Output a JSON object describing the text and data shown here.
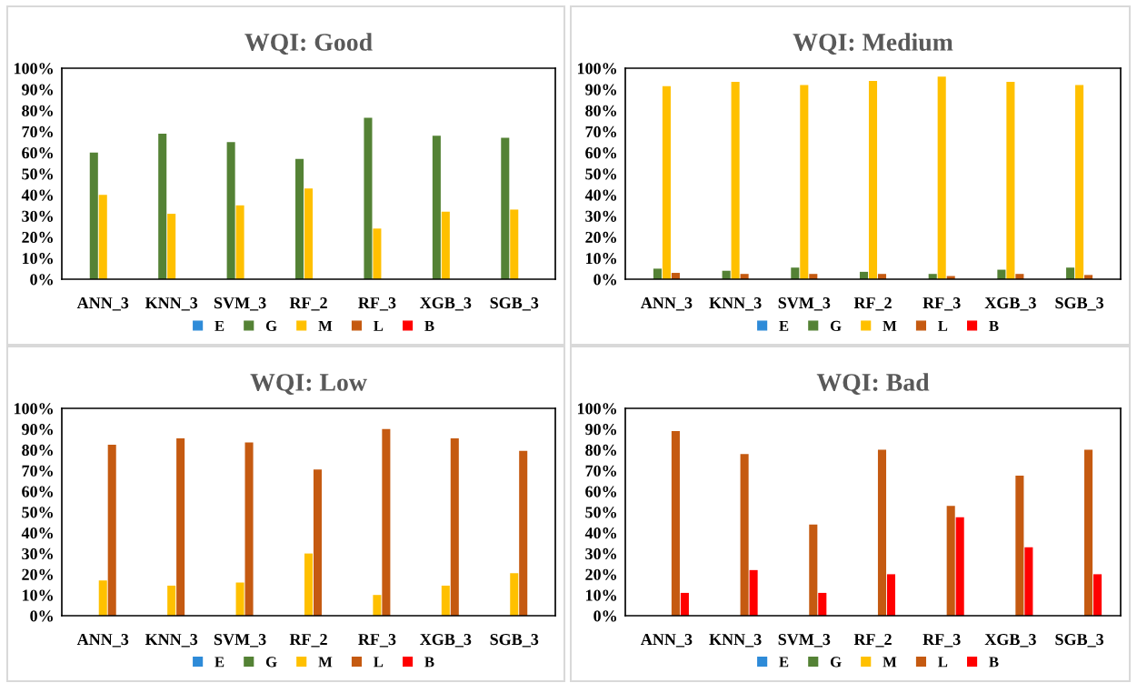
{
  "chart_data": [
    {
      "type": "bar",
      "title": "WQI: Good",
      "categories": [
        "ANN_3",
        "KNN_3",
        "SVM_3",
        "RF_2",
        "RF_3",
        "XGB_3",
        "SGB_3"
      ],
      "series": [
        {
          "name": "E",
          "color": "#2e8bd8",
          "values": [
            0,
            0,
            0,
            0,
            0,
            0,
            0
          ]
        },
        {
          "name": "G",
          "color": "#548235",
          "values": [
            60,
            69,
            65,
            57,
            76.5,
            68,
            67
          ]
        },
        {
          "name": "M",
          "color": "#ffc000",
          "values": [
            40,
            31,
            35,
            43,
            24,
            32,
            33
          ]
        },
        {
          "name": "L",
          "color": "#c55a11",
          "values": [
            0,
            0,
            0,
            0,
            0,
            0,
            0
          ]
        },
        {
          "name": "B",
          "color": "#ff0000",
          "values": [
            0,
            0,
            0,
            0,
            0,
            0,
            0
          ]
        }
      ],
      "ylim": [
        0,
        100
      ],
      "yticks": [
        {
          "value": 0,
          "label": "0%"
        },
        {
          "value": 10,
          "label": "10%"
        },
        {
          "value": 20,
          "label": "20%"
        },
        {
          "value": 30,
          "label": "30%"
        },
        {
          "value": 40,
          "label": "40%"
        },
        {
          "value": 50,
          "label": "50%"
        },
        {
          "value": 60,
          "label": "60%"
        },
        {
          "value": 70,
          "label": "70%"
        },
        {
          "value": 80,
          "label": "80%"
        },
        {
          "value": 90,
          "label": "90%"
        },
        {
          "value": 100,
          "label": "100%"
        }
      ],
      "grid": false,
      "legend": "bottom"
    },
    {
      "type": "bar",
      "title": "WQI: Medium",
      "categories": [
        "ANN_3",
        "KNN_3",
        "SVM_3",
        "RF_2",
        "RF_3",
        "XGB_3",
        "SGB_3"
      ],
      "series": [
        {
          "name": "E",
          "color": "#2e8bd8",
          "values": [
            0,
            0,
            0,
            0,
            0,
            0,
            0
          ]
        },
        {
          "name": "G",
          "color": "#548235",
          "values": [
            5,
            4,
            5.5,
            3.5,
            2.5,
            4.5,
            5.5
          ]
        },
        {
          "name": "M",
          "color": "#ffc000",
          "values": [
            91.5,
            93.5,
            92,
            94,
            96,
            93.5,
            92
          ]
        },
        {
          "name": "L",
          "color": "#c55a11",
          "values": [
            3,
            2.5,
            2.5,
            2.5,
            1.5,
            2.5,
            2
          ]
        },
        {
          "name": "B",
          "color": "#ff0000",
          "values": [
            0,
            0,
            0,
            0,
            0,
            0,
            0
          ]
        }
      ],
      "ylim": [
        0,
        100
      ],
      "yticks": [
        {
          "value": 0,
          "label": "0%"
        },
        {
          "value": 10,
          "label": "10%"
        },
        {
          "value": 20,
          "label": "20%"
        },
        {
          "value": 30,
          "label": "30%"
        },
        {
          "value": 40,
          "label": "40%"
        },
        {
          "value": 50,
          "label": "50%"
        },
        {
          "value": 60,
          "label": "60%"
        },
        {
          "value": 70,
          "label": "70%"
        },
        {
          "value": 80,
          "label": "80%"
        },
        {
          "value": 90,
          "label": "90%"
        },
        {
          "value": 100,
          "label": "100%"
        }
      ],
      "grid": false,
      "legend": "bottom"
    },
    {
      "type": "bar",
      "title": "WQI: Low",
      "categories": [
        "ANN_3",
        "KNN_3",
        "SVM_3",
        "RF_2",
        "RF_3",
        "XGB_3",
        "SGB_3"
      ],
      "series": [
        {
          "name": "E",
          "color": "#2e8bd8",
          "values": [
            0,
            0,
            0,
            0,
            0,
            0,
            0
          ]
        },
        {
          "name": "G",
          "color": "#548235",
          "values": [
            0,
            0,
            0,
            0,
            0,
            0,
            0
          ]
        },
        {
          "name": "M",
          "color": "#ffc000",
          "values": [
            17,
            14.5,
            16,
            30,
            10,
            14.5,
            20.5
          ]
        },
        {
          "name": "L",
          "color": "#c55a11",
          "values": [
            82.5,
            85.5,
            83.5,
            70.5,
            90,
            85.5,
            79.5
          ]
        },
        {
          "name": "B",
          "color": "#ff0000",
          "values": [
            0,
            0,
            0,
            0,
            0,
            0,
            0
          ]
        }
      ],
      "ylim": [
        0,
        100
      ],
      "yticks": [
        {
          "value": 0,
          "label": "0%"
        },
        {
          "value": 10,
          "label": "10%"
        },
        {
          "value": 20,
          "label": "20%"
        },
        {
          "value": 30,
          "label": "30%"
        },
        {
          "value": 40,
          "label": "40%"
        },
        {
          "value": 50,
          "label": "50%"
        },
        {
          "value": 60,
          "label": "60%"
        },
        {
          "value": 70,
          "label": "70%"
        },
        {
          "value": 80,
          "label": "80%"
        },
        {
          "value": 90,
          "label": "90%"
        },
        {
          "value": 100,
          "label": "100%"
        }
      ],
      "grid": false,
      "legend": "bottom"
    },
    {
      "type": "bar",
      "title": "WQI: Bad",
      "categories": [
        "ANN_3",
        "KNN_3",
        "SVM_3",
        "RF_2",
        "RF_3",
        "XGB_3",
        "SGB_3"
      ],
      "series": [
        {
          "name": "E",
          "color": "#2e8bd8",
          "values": [
            0,
            0,
            0,
            0,
            0,
            0,
            0
          ]
        },
        {
          "name": "G",
          "color": "#548235",
          "values": [
            0,
            0,
            0,
            0,
            0,
            0,
            0
          ]
        },
        {
          "name": "M",
          "color": "#ffc000",
          "values": [
            0,
            0,
            0,
            0,
            0,
            0,
            0
          ]
        },
        {
          "name": "L",
          "color": "#c55a11",
          "values": [
            89,
            78,
            44,
            80,
            53,
            67.5,
            80
          ]
        },
        {
          "name": "B",
          "color": "#ff0000",
          "values": [
            11,
            22,
            11,
            20,
            47.5,
            33,
            20
          ]
        }
      ],
      "ylim": [
        0,
        100
      ],
      "yticks": [
        {
          "value": 0,
          "label": "0%"
        },
        {
          "value": 10,
          "label": "10%"
        },
        {
          "value": 20,
          "label": "20%"
        },
        {
          "value": 30,
          "label": "30%"
        },
        {
          "value": 40,
          "label": "40%"
        },
        {
          "value": 50,
          "label": "50%"
        },
        {
          "value": 60,
          "label": "60%"
        },
        {
          "value": 70,
          "label": "70%"
        },
        {
          "value": 80,
          "label": "80%"
        },
        {
          "value": 90,
          "label": "90%"
        },
        {
          "value": 100,
          "label": "100%"
        }
      ],
      "grid": false,
      "legend": "bottom"
    }
  ]
}
